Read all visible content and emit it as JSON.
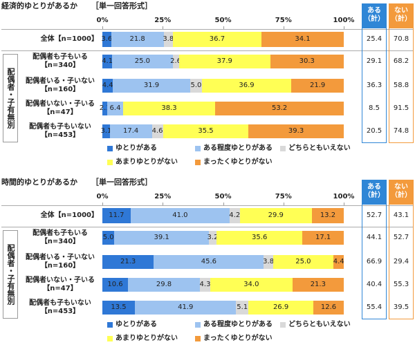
{
  "chart_data": [
    {
      "type": "bar",
      "title": "経済的ゆとりがあるか",
      "subtitle": "［単一回答形式］",
      "group_label": "配偶者・子有無別",
      "categories": [
        "全体【n=1000】",
        "配偶者も子もいる\n【n=340】",
        "配偶者いる・子いない\n【n=160】",
        "配偶者いない・子いる\n【n=47】",
        "配偶者も子もいない\n【n=453】"
      ],
      "xlim": [
        0,
        100
      ],
      "xticks": [
        {
          "value": 0,
          "label": "0%"
        },
        {
          "value": 25,
          "label": "25%"
        },
        {
          "value": 50,
          "label": "50%"
        },
        {
          "value": 75,
          "label": "75%"
        },
        {
          "value": 100,
          "label": "100%"
        }
      ],
      "series": [
        {
          "name": "ゆとりがある",
          "color": "#2f78d6",
          "values": [
            3.6,
            4.1,
            4.4,
            2.1,
            3.1
          ],
          "value_labels": [
            "3.6",
            "4.1",
            "4.4",
            "2.1",
            "3.1"
          ]
        },
        {
          "name": "ある程度ゆとりがある",
          "color": "#9dc3f0",
          "values": [
            21.8,
            25.0,
            31.9,
            6.4,
            17.4
          ],
          "value_labels": [
            "21.8",
            "25.0",
            "31.9",
            "6.4",
            "17.4"
          ]
        },
        {
          "name": "どちらともいえない",
          "color": "#d9d9d9",
          "values": [
            3.8,
            2.6,
            5.0,
            null,
            4.6
          ],
          "value_labels": [
            "3.8",
            "2.6",
            "5.0",
            null,
            "4.6"
          ]
        },
        {
          "name": "あまりゆとりがない",
          "color": "#ffff55",
          "values": [
            36.7,
            37.9,
            36.9,
            38.3,
            35.5
          ],
          "value_labels": [
            "36.7",
            "37.9",
            "36.9",
            "38.3",
            "35.5"
          ]
        },
        {
          "name": "まったくゆとりがない",
          "color": "#f39a3c",
          "values": [
            34.1,
            30.3,
            21.9,
            53.2,
            39.3
          ],
          "value_labels": [
            "34.1",
            "30.3",
            "21.9",
            "53.2",
            "39.3"
          ]
        }
      ],
      "totals": [
        {
          "name": "ある（計）",
          "color": "#2f86d6",
          "values": [
            25.4,
            29.1,
            36.3,
            8.5,
            20.5
          ]
        },
        {
          "name": "ない（計）",
          "color": "#f39a3c",
          "values": [
            70.8,
            68.2,
            58.8,
            91.5,
            74.8
          ]
        }
      ]
    },
    {
      "type": "bar",
      "title": "時間的ゆとりがあるか",
      "subtitle": "［単一回答形式］",
      "group_label": "配偶者・子有無別",
      "categories": [
        "全体【n=1000】",
        "配偶者も子もいる\n【n=340】",
        "配偶者いる・子いない\n【n=160】",
        "配偶者いない・子いる\n【n=47】",
        "配偶者も子もいない\n【n=453】"
      ],
      "xlim": [
        0,
        100
      ],
      "xticks": [
        {
          "value": 0,
          "label": "0%"
        },
        {
          "value": 25,
          "label": "25%"
        },
        {
          "value": 50,
          "label": "50%"
        },
        {
          "value": 75,
          "label": "75%"
        },
        {
          "value": 100,
          "label": "100%"
        }
      ],
      "series": [
        {
          "name": "ゆとりがある",
          "color": "#2f78d6",
          "values": [
            11.7,
            5.0,
            21.3,
            10.6,
            13.5
          ],
          "value_labels": [
            "11.7",
            "5.0",
            "21.3",
            "10.6",
            "13.5"
          ]
        },
        {
          "name": "ある程度ゆとりがある",
          "color": "#9dc3f0",
          "values": [
            41.0,
            39.1,
            45.6,
            29.8,
            41.9
          ],
          "value_labels": [
            "41.0",
            "39.1",
            "45.6",
            "29.8",
            "41.9"
          ]
        },
        {
          "name": "どちらともいえない",
          "color": "#d9d9d9",
          "values": [
            4.2,
            3.2,
            3.8,
            4.3,
            5.1
          ],
          "value_labels": [
            "4.2",
            "3.2",
            "3.8",
            "4.3",
            "5.1"
          ]
        },
        {
          "name": "あまりゆとりがない",
          "color": "#ffff55",
          "values": [
            29.9,
            35.6,
            25.0,
            34.0,
            26.9
          ],
          "value_labels": [
            "29.9",
            "35.6",
            "25.0",
            "34.0",
            "26.9"
          ]
        },
        {
          "name": "まったくゆとりがない",
          "color": "#f39a3c",
          "values": [
            13.2,
            17.1,
            4.4,
            21.3,
            12.6
          ],
          "value_labels": [
            "13.2",
            "17.1",
            "4.4",
            "21.3",
            "12.6"
          ]
        }
      ],
      "totals": [
        {
          "name": "ある（計）",
          "color": "#2f86d6",
          "values": [
            52.7,
            44.1,
            66.9,
            40.4,
            55.4
          ]
        },
        {
          "name": "ない（計）",
          "color": "#f39a3c",
          "values": [
            43.1,
            52.7,
            29.4,
            55.3,
            39.5
          ]
        }
      ]
    }
  ]
}
